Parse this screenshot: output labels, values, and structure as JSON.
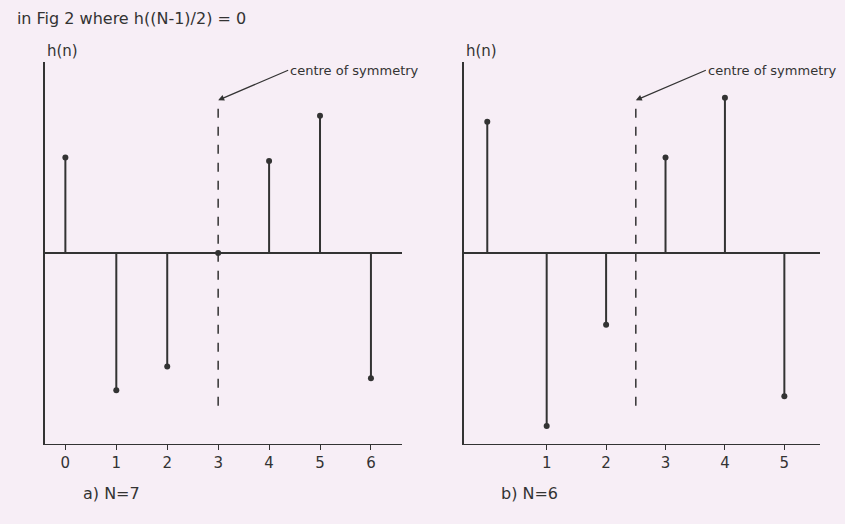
{
  "title": "in Fig 2 where h((N-1)/2) = 0",
  "chart_data": [
    {
      "type": "stem",
      "caption": "a) N=7",
      "ylabel": "h(n)",
      "x": [
        0,
        1,
        2,
        3,
        4,
        5,
        6
      ],
      "values": [
        0.8,
        -1.15,
        -0.95,
        0,
        0.77,
        1.15,
        -1.05
      ],
      "xlim": [
        -0.4,
        6.6
      ],
      "xticks": [
        0,
        1,
        2,
        3,
        4,
        5,
        6
      ],
      "ylim": [
        -1.6,
        1.6
      ],
      "tick_labels": "x",
      "color": "#333333",
      "marker": "circle",
      "center_of_symmetry": {
        "x": 3,
        "label": "centre of symmetry"
      }
    },
    {
      "type": "stem",
      "caption": "b) N=6",
      "ylabel": "h(n)",
      "x": [
        0,
        1,
        2,
        3,
        4,
        5
      ],
      "values": [
        1.1,
        -1.45,
        -0.6,
        0.8,
        1.3,
        -1.2
      ],
      "xlim": [
        -0.4,
        5.6
      ],
      "xticks": [
        1,
        2,
        3,
        4,
        5
      ],
      "ylim": [
        -1.6,
        1.6
      ],
      "tick_labels": "x",
      "color": "#333333",
      "marker": "circle",
      "center_of_symmetry": {
        "x": 2.5,
        "label": "centre of symmetry"
      }
    }
  ]
}
